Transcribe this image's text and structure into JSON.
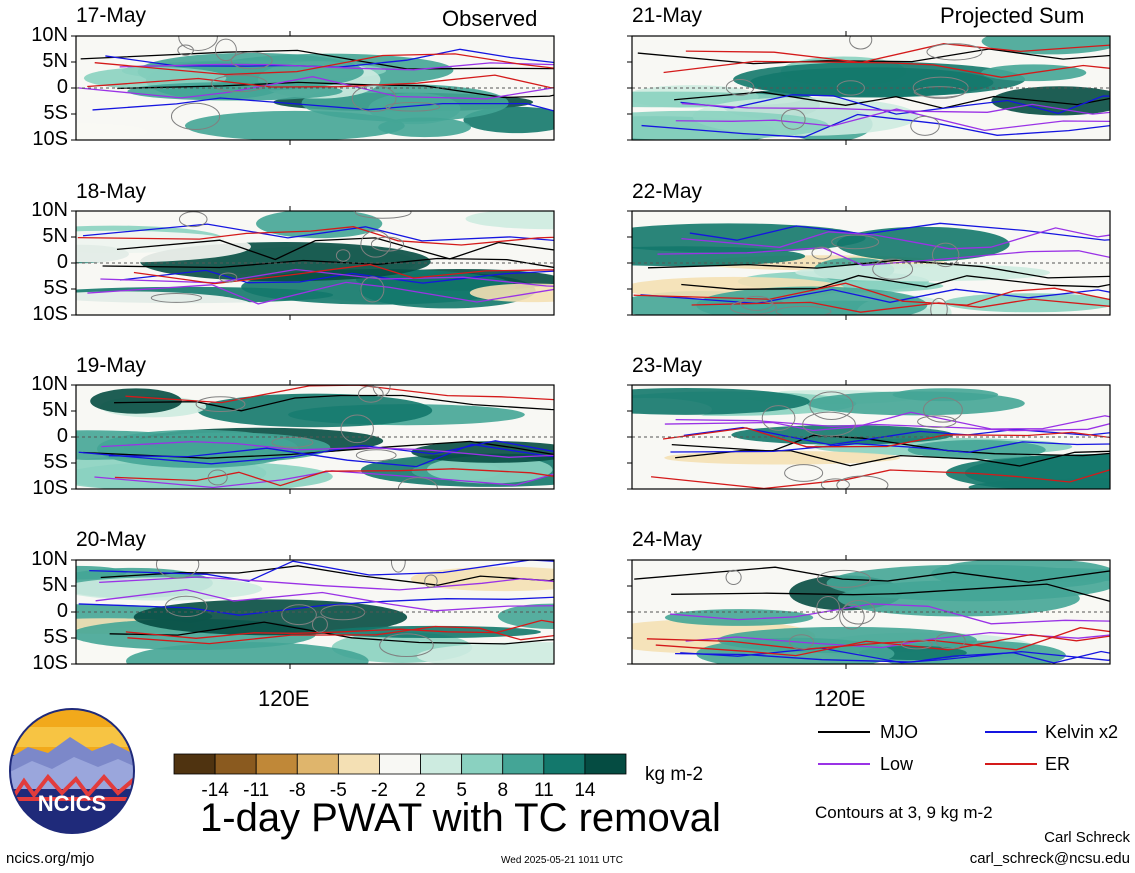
{
  "chart_data": {
    "type": "heatmap",
    "title": "1-day PWAT with TC removal",
    "variable": "PWAT anomaly",
    "units": "kg m-2",
    "colorbar": {
      "tick_labels": [
        "-14",
        "-11",
        "-8",
        "-5",
        "-2",
        "2",
        "5",
        "8",
        "11",
        "14"
      ],
      "colors": [
        "#4f3310",
        "#8a5a1f",
        "#c08838",
        "#dfb56c",
        "#f4e0b4",
        "#f8f8f4",
        "#cdebe0",
        "#8ad1c0",
        "#44a596",
        "#13786c",
        "#054c42"
      ]
    },
    "columns": [
      {
        "header": "Observed",
        "position": "top-right of first panel"
      },
      {
        "header": "Projected Sum",
        "position": "top-right of first panel"
      }
    ],
    "panels": [
      {
        "date": "17-May",
        "group": "Observed"
      },
      {
        "date": "18-May",
        "group": "Observed"
      },
      {
        "date": "19-May",
        "group": "Observed"
      },
      {
        "date": "20-May",
        "group": "Observed"
      },
      {
        "date": "21-May",
        "group": "Projected Sum"
      },
      {
        "date": "22-May",
        "group": "Projected Sum"
      },
      {
        "date": "23-May",
        "group": "Projected Sum"
      },
      {
        "date": "24-May",
        "group": "Projected Sum"
      }
    ],
    "y_axis": {
      "tick_labels": [
        "10N",
        "5N",
        "0",
        "5S",
        "10S"
      ],
      "range_deg": [
        -10,
        10
      ]
    },
    "x_axis": {
      "tick_labels": [
        "120E"
      ]
    },
    "contour_note": "Contours at 3, 9 kg m-2",
    "contour_legend": [
      {
        "name": "MJO",
        "color": "#000000"
      },
      {
        "name": "Kelvin x2",
        "color": "#1515e0"
      },
      {
        "name": "Low",
        "color": "#9a32e6"
      },
      {
        "name": "ER",
        "color": "#d41a1a"
      }
    ],
    "grid": false
  },
  "branding": {
    "logo_text": "NCICS",
    "site": "ncics.org/mjo",
    "timestamp": "Wed 2025-05-21 1011 UTC",
    "author": "Carl Schreck",
    "email": "carl_schreck@ncsu.edu"
  }
}
